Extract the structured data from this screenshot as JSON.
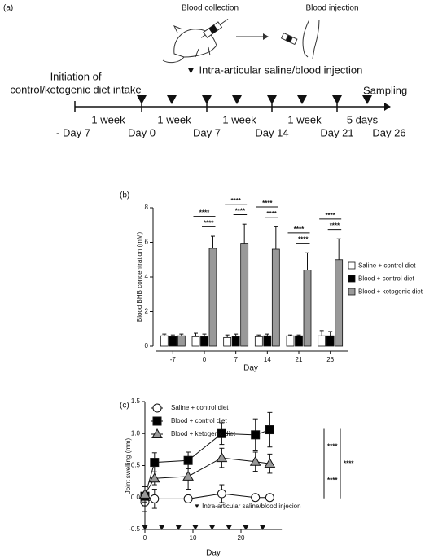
{
  "timeline": {
    "panel_label": "(a)",
    "blood_collection": "Blood collection",
    "blood_injection": "Blood injection",
    "injection_legend": "▼ Intra-articular saline/blood injection",
    "initiation": [
      "Initiation of",
      "control/ketogenic diet intake"
    ],
    "sampling": "Sampling",
    "intervals": [
      "1 week",
      "1 week",
      "1 week",
      "1 week",
      "5 days"
    ],
    "days": [
      "- Day 7",
      "Day 0",
      "Day 7",
      "Day 14",
      "Day 21",
      "Day 26"
    ]
  },
  "chart_data": [
    {
      "type": "bar",
      "panel_label": "(b)",
      "y_label": "Blood BHB concentration (mM)",
      "x_label": "Day",
      "categories": [
        "-7",
        "0",
        "7",
        "14",
        "21",
        "26"
      ],
      "series": [
        {
          "name": "Saline + control diet",
          "color": "#ffffff",
          "values": [
            0.6,
            0.55,
            0.5,
            0.55,
            0.6,
            0.6
          ],
          "errors": [
            0.1,
            0.2,
            0.15,
            0.1,
            0.05,
            0.3
          ]
        },
        {
          "name": "Blood + control diet",
          "color": "#000000",
          "values": [
            0.55,
            0.55,
            0.55,
            0.6,
            0.6,
            0.6
          ],
          "errors": [
            0.1,
            0.15,
            0.15,
            0.1,
            0.05,
            0.25
          ]
        },
        {
          "name": "Blood + ketogenic diet",
          "color": "#999999",
          "values": [
            0.6,
            5.65,
            5.95,
            5.6,
            4.4,
            5.0
          ],
          "errors": [
            0.1,
            0.7,
            1.1,
            1.3,
            1.0,
            1.2
          ]
        }
      ],
      "significance": [
        "****",
        "****",
        "****",
        "****",
        "****",
        "****",
        "****",
        "****",
        "****",
        "****"
      ],
      "ylim": [
        0,
        8
      ],
      "yticks": [
        0,
        2,
        4,
        6,
        8
      ]
    },
    {
      "type": "line",
      "panel_label": "(c)",
      "y_label": "Joint swelling (mm)",
      "x_label": "Day",
      "x": [
        0,
        2,
        9,
        16,
        23,
        26
      ],
      "series": [
        {
          "name": "Saline + control diet",
          "color": "#ffffff",
          "marker": "circle",
          "values": [
            -0.07,
            -0.02,
            -0.02,
            0.06,
            0.0,
            0.0
          ],
          "errors": [
            0.15,
            0.15,
            0.05,
            0.14,
            0.04,
            0.04
          ]
        },
        {
          "name": "Blood + control diet",
          "color": "#000000",
          "marker": "square",
          "values": [
            0.02,
            0.55,
            0.58,
            1.0,
            0.98,
            1.06
          ],
          "errors": [
            0.15,
            0.15,
            0.13,
            0.17,
            0.25,
            0.27
          ]
        },
        {
          "name": "Blood + ketogenic diet",
          "color": "#999999",
          "marker": "triangle",
          "values": [
            0.05,
            0.3,
            0.33,
            0.62,
            0.56,
            0.53
          ],
          "errors": [
            0.12,
            0.1,
            0.2,
            0.15,
            0.15,
            0.15
          ]
        }
      ],
      "injection_label": "▼ Intra-articular saline/blood injecion",
      "injection_days": [
        0,
        3.5,
        7,
        10.5,
        14,
        17.5,
        21,
        24.5
      ],
      "significance": [
        "****",
        "****",
        "****"
      ],
      "xlim": [
        0,
        28.5
      ],
      "xticks": [
        0,
        10,
        20
      ],
      "ylim": [
        -0.5,
        1.5
      ],
      "yticks": [
        {
          "value": -0.5,
          "label": "-0.5"
        },
        {
          "value": 0,
          "label": "0.0"
        },
        0.5,
        {
          "value": 1,
          "label": "1.0"
        },
        1.5
      ]
    }
  ]
}
